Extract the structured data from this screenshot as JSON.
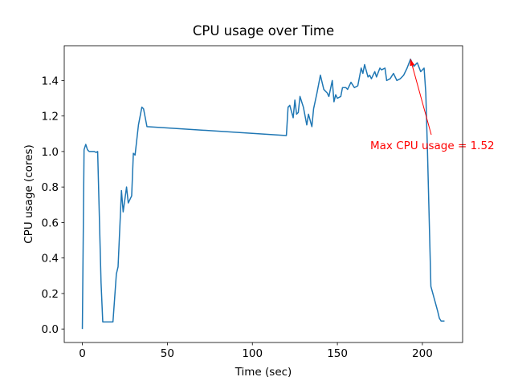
{
  "chart_data": {
    "type": "line",
    "title": "CPU usage over Time",
    "xlabel": "Time (sec)",
    "ylabel": "CPU usage (cores)",
    "x": [
      0,
      1,
      2,
      3,
      4,
      5,
      7,
      8,
      9,
      11,
      12,
      14,
      16,
      18,
      20,
      21,
      23,
      24,
      26,
      27,
      29,
      30,
      31,
      33,
      35,
      36,
      38,
      120,
      121,
      122,
      124,
      125,
      126,
      127,
      128,
      130,
      132,
      133,
      135,
      136,
      138,
      140,
      142,
      144,
      145,
      147,
      148,
      149,
      150,
      152,
      153,
      155,
      156,
      158,
      160,
      162,
      164,
      165,
      166,
      168,
      169,
      170,
      172,
      173,
      175,
      176,
      178,
      179,
      181,
      183,
      185,
      187,
      189,
      191,
      193,
      195,
      197,
      199,
      200,
      201,
      202,
      203,
      205,
      207,
      209,
      210,
      211,
      213
    ],
    "series": [
      {
        "name": "CPU usage",
        "color": "#1f77b4",
        "values": [
          0.0,
          1.01,
          1.04,
          1.01,
          1.0,
          1.0,
          1.0,
          0.995,
          1.0,
          0.26,
          0.04,
          0.04,
          0.04,
          0.04,
          0.31,
          0.35,
          0.78,
          0.66,
          0.8,
          0.71,
          0.75,
          0.99,
          0.98,
          1.15,
          1.25,
          1.24,
          1.14,
          1.09,
          1.25,
          1.26,
          1.19,
          1.29,
          1.21,
          1.22,
          1.31,
          1.25,
          1.15,
          1.21,
          1.14,
          1.24,
          1.33,
          1.43,
          1.35,
          1.33,
          1.31,
          1.4,
          1.28,
          1.32,
          1.3,
          1.31,
          1.36,
          1.36,
          1.35,
          1.39,
          1.36,
          1.37,
          1.47,
          1.44,
          1.49,
          1.42,
          1.43,
          1.41,
          1.45,
          1.42,
          1.47,
          1.46,
          1.47,
          1.4,
          1.41,
          1.44,
          1.4,
          1.41,
          1.43,
          1.47,
          1.52,
          1.48,
          1.5,
          1.45,
          1.46,
          1.47,
          1.33,
          1.0,
          0.24,
          0.17,
          0.1,
          0.06,
          0.045,
          0.045
        ]
      }
    ],
    "annotation": {
      "text": "Max CPU usage = 1.52",
      "color": "#ff0000"
    },
    "xlim": [
      -10.65,
      223.65
    ],
    "ylim": [
      -0.076,
      1.596
    ],
    "xticks": [
      0,
      50,
      100,
      150,
      200
    ],
    "yticks": [
      {
        "value": 0,
        "label": "0.0"
      },
      0.2,
      0.4,
      0.6,
      0.8,
      {
        "value": 1,
        "label": "1.0"
      },
      1.2,
      1.4
    ],
    "grid": false
  }
}
